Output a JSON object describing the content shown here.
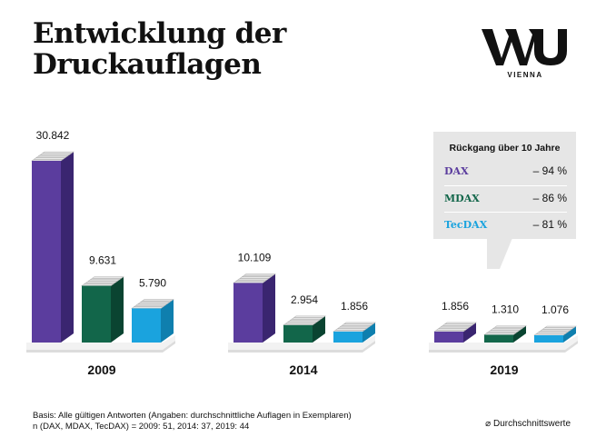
{
  "title_lines": [
    "Entwicklung der",
    "Druckauflagen"
  ],
  "logo": {
    "text": "WU",
    "sub": "VIENNA"
  },
  "callout": {
    "header": "Rückgang über 10 Jahre",
    "rows": [
      {
        "label": "DAX",
        "value": "– 94 %",
        "color": "#5b3d9e"
      },
      {
        "label": "MDAX",
        "value": "– 86 %",
        "color": "#12664a"
      },
      {
        "label": "TecDAX",
        "value": "– 81 %",
        "color": "#1aa3de"
      }
    ]
  },
  "footnote": [
    "Basis: Alle gültigen Antworten (Angaben: durchschnittliche Auflagen in Exemplaren)",
    "n (DAX, MDAX, TecDAX) = 2009: 51, 2014: 37, 2019: 44"
  ],
  "legend": "⌀ Durchschnittswerte",
  "chart_data": {
    "type": "bar",
    "categories": [
      "2009",
      "2014",
      "2019"
    ],
    "series": [
      {
        "name": "DAX",
        "values": [
          30842,
          10109,
          1856
        ],
        "labels": [
          "30.842",
          "10.109",
          "1.856"
        ],
        "color": "#5b3d9e",
        "side": "#3a2570"
      },
      {
        "name": "MDAX",
        "values": [
          9631,
          2954,
          1310
        ],
        "labels": [
          "9.631",
          "2.954",
          "1.310"
        ],
        "color": "#12664a",
        "side": "#0a4431"
      },
      {
        "name": "TecDAX",
        "values": [
          5790,
          1856,
          1076
        ],
        "labels": [
          "5.790",
          "1.856",
          "1.076"
        ],
        "color": "#1aa3de",
        "side": "#0f7fae"
      }
    ],
    "ylim": [
      0,
      32000
    ]
  }
}
